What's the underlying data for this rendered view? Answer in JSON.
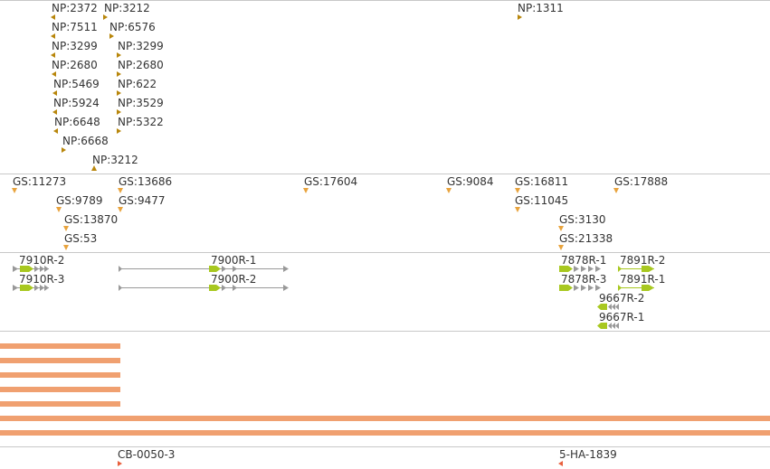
{
  "np_track": {
    "features": [
      {
        "label": "NP:2372",
        "dir": "left"
      },
      {
        "label": "NP:3212",
        "dir": "right"
      },
      {
        "label": "NP:1311",
        "dir": "right"
      },
      {
        "label": "NP:7511",
        "dir": "left"
      },
      {
        "label": "NP:6576",
        "dir": "right"
      },
      {
        "label": "NP:3299",
        "dir": "left"
      },
      {
        "label": "NP:3299",
        "dir": "right"
      },
      {
        "label": "NP:2680",
        "dir": "left"
      },
      {
        "label": "NP:2680",
        "dir": "right"
      },
      {
        "label": "NP:5469",
        "dir": "left"
      },
      {
        "label": "NP:622",
        "dir": "right"
      },
      {
        "label": "NP:5924",
        "dir": "left"
      },
      {
        "label": "NP:3529",
        "dir": "right"
      },
      {
        "label": "NP:6648",
        "dir": "left"
      },
      {
        "label": "NP:5322",
        "dir": "right"
      },
      {
        "label": "NP:6668",
        "dir": "left"
      },
      {
        "label": "NP:3212",
        "dir": "up"
      }
    ]
  },
  "gs_track": {
    "features": [
      {
        "label": "GS:11273"
      },
      {
        "label": "GS:13686"
      },
      {
        "label": "GS:17604"
      },
      {
        "label": "GS:9084"
      },
      {
        "label": "GS:16811"
      },
      {
        "label": "GS:17888"
      },
      {
        "label": "GS:9789"
      },
      {
        "label": "GS:9477"
      },
      {
        "label": "GS:11045"
      },
      {
        "label": "GS:13870"
      },
      {
        "label": "GS:3130"
      },
      {
        "label": "GS:53"
      },
      {
        "label": "GS:21338"
      }
    ]
  },
  "gene_track": {
    "genes": [
      {
        "label": "7910R-2"
      },
      {
        "label": "7910R-3"
      },
      {
        "label": "7900R-1"
      },
      {
        "label": "7900R-2"
      },
      {
        "label": "7878R-1"
      },
      {
        "label": "7878R-3"
      },
      {
        "label": "7891R-2"
      },
      {
        "label": "7891R-1"
      },
      {
        "label": "9667R-2"
      },
      {
        "label": "9667R-1"
      }
    ]
  },
  "bar_track": {
    "color": "#f0a070",
    "bar_count": 7
  },
  "cb_track": {
    "features": [
      {
        "label": "CB-0050-3",
        "dir": "right"
      },
      {
        "label": "5-HA-1839",
        "dir": "left"
      }
    ]
  },
  "colors": {
    "np_marker": "#b8860b",
    "gs_marker": "#e8a33d",
    "exon_green": "#a8c820",
    "exon_gray": "#999999",
    "cb_marker": "#e8603d",
    "separator": "#c8c8c8"
  }
}
